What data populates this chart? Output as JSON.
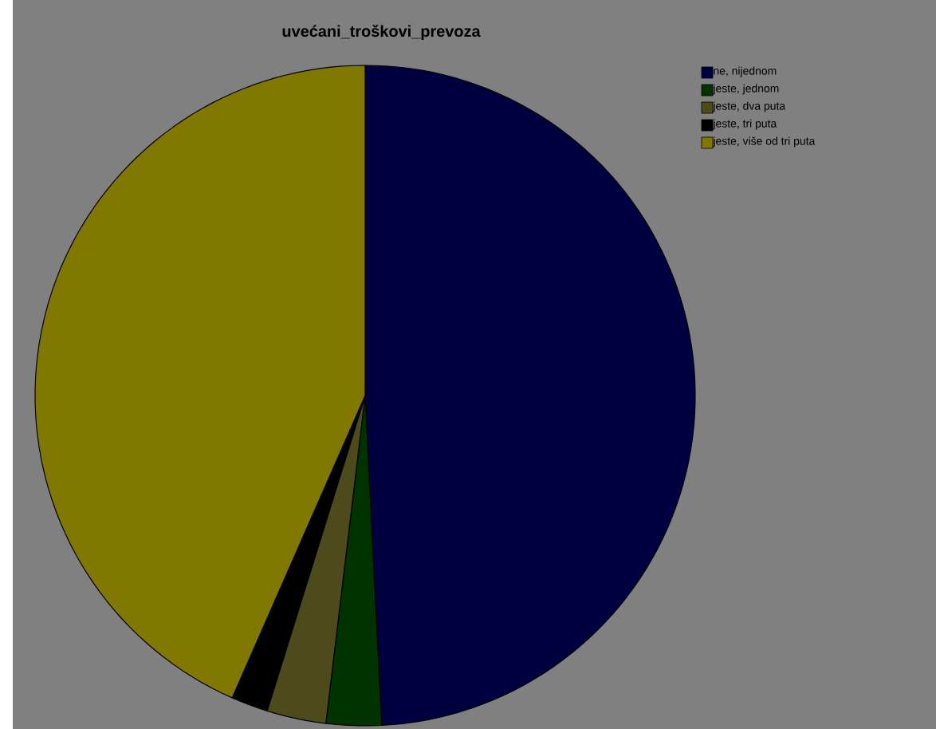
{
  "chart_data": {
    "type": "pie",
    "title": "uvećani_troškovi_prevoza",
    "categories": [
      "ne, nijednom",
      "jeste, jednom",
      "jeste, dva puta",
      "jeste, tri puta",
      "jeste, više od tri puta"
    ],
    "values": [
      49.2,
      2.7,
      2.9,
      1.8,
      43.4
    ],
    "colors": [
      "#000040",
      "#003300",
      "#4d4a1c",
      "#000000",
      "#807800"
    ],
    "legend": "top right"
  }
}
